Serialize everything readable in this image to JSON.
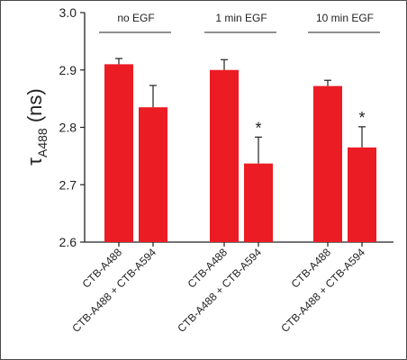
{
  "colors": {
    "bar": "#ec1c24",
    "axis": "#222222",
    "frame": "#4a4a4a"
  },
  "chart_data": {
    "type": "bar",
    "ylabel_main": "τ",
    "ylabel_sub": "A488",
    "ylabel_unit": " (ns)",
    "ylim": [
      2.6,
      3.0
    ],
    "yticks": [
      "2.6",
      "2.7",
      "2.8",
      "2.9",
      "3.0"
    ],
    "groups": [
      {
        "label": "no EGF",
        "bars": [
          {
            "category": "CTB-A488",
            "value": 2.91,
            "error": 0.01,
            "sig": ""
          },
          {
            "category": "CTB-A488 + CTB-A594",
            "value": 2.835,
            "error": 0.038,
            "sig": ""
          }
        ]
      },
      {
        "label": "1 min EGF",
        "bars": [
          {
            "category": "CTB-A488",
            "value": 2.9,
            "error": 0.018,
            "sig": ""
          },
          {
            "category": "CTB-A488 + CTB-A594",
            "value": 2.737,
            "error": 0.046,
            "sig": "*"
          }
        ]
      },
      {
        "label": "10 min EGF",
        "bars": [
          {
            "category": "CTB-A488",
            "value": 2.872,
            "error": 0.01,
            "sig": ""
          },
          {
            "category": "CTB-A488 + CTB-A594",
            "value": 2.765,
            "error": 0.036,
            "sig": "*"
          }
        ]
      }
    ]
  }
}
